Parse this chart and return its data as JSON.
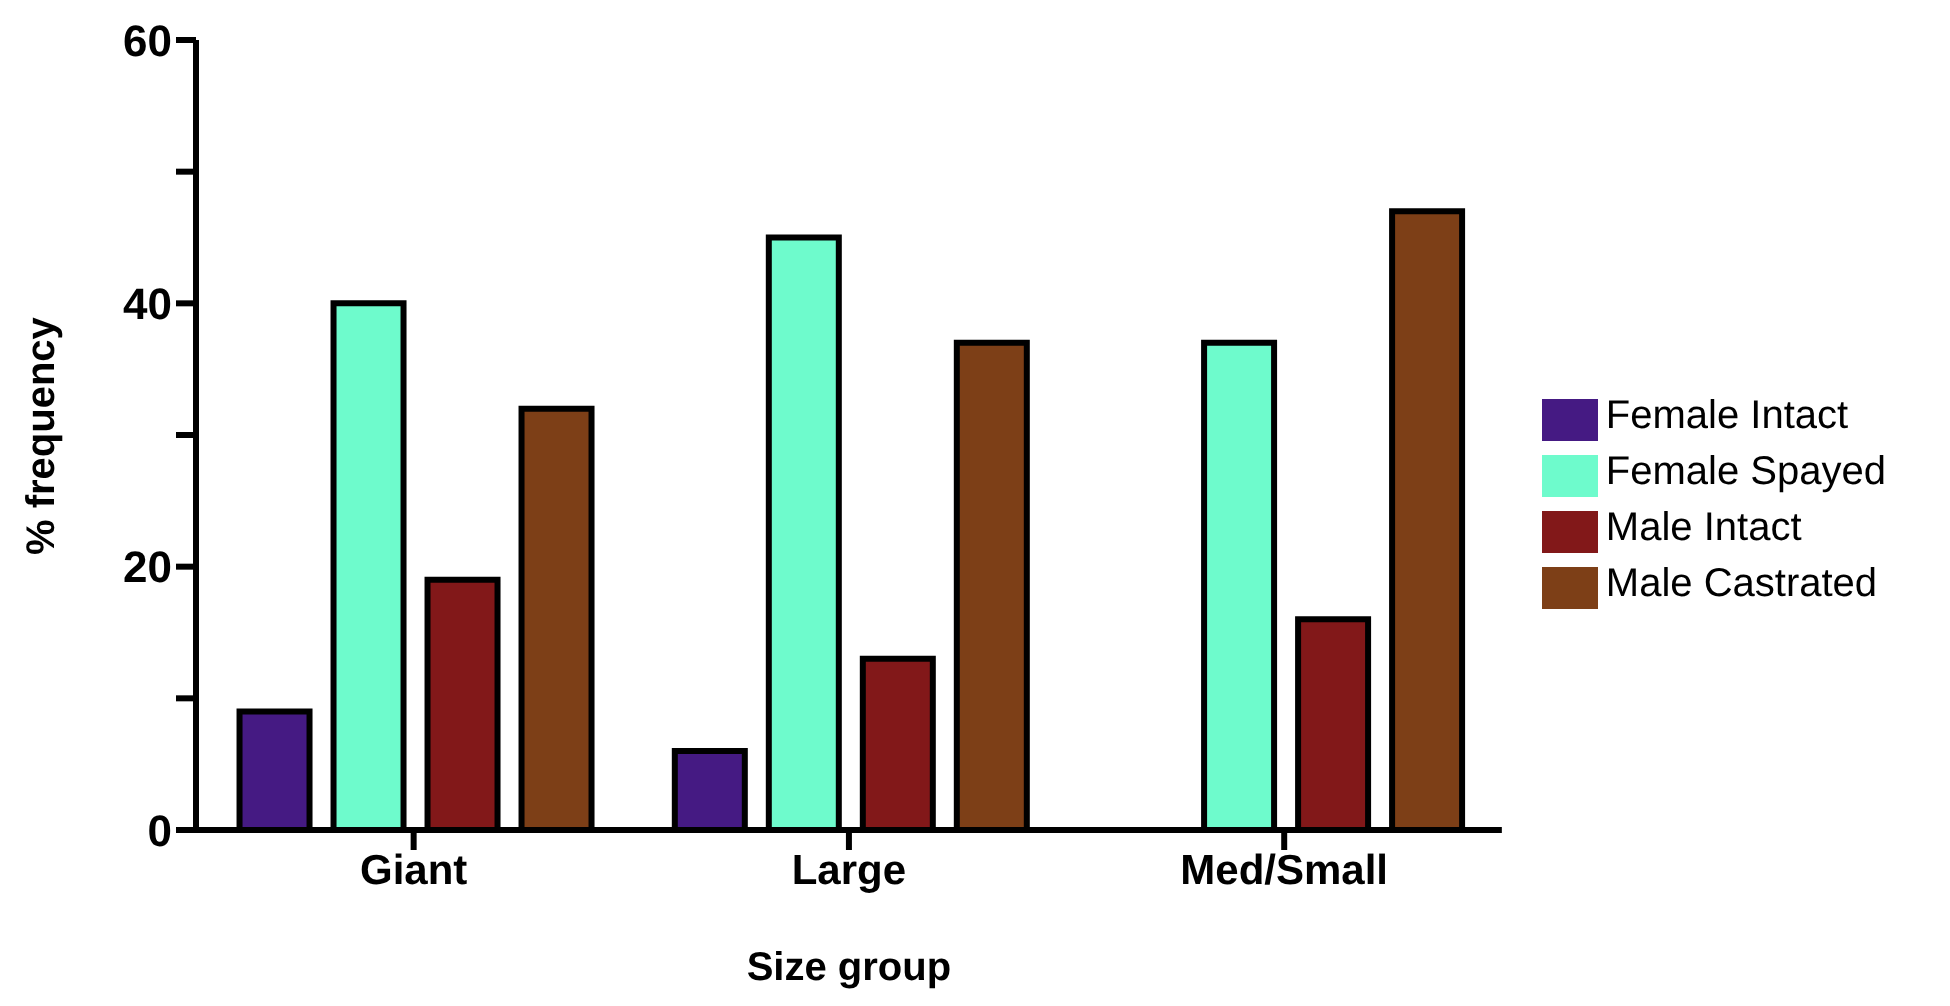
{
  "chart_data": {
    "type": "bar",
    "xlabel": "Size group",
    "ylabel": "% frequency",
    "categories": [
      "Giant",
      "Large",
      "Med/Small"
    ],
    "series": [
      {
        "name": "Female Intact",
        "color": "#451a83",
        "values": [
          9,
          6,
          0
        ]
      },
      {
        "name": "Female Spayed",
        "color": "#6efbcc",
        "values": [
          40,
          45,
          37
        ]
      },
      {
        "name": "Male Intact",
        "color": "#821819",
        "values": [
          19,
          13,
          16
        ]
      },
      {
        "name": "Male Castrated",
        "color": "#7d3f17",
        "values": [
          32,
          37,
          47
        ]
      }
    ],
    "ylim": [
      0,
      60
    ],
    "yticks": [
      0,
      {
        "value": 10,
        "label": null
      },
      20,
      {
        "value": 30,
        "label": null
      },
      40,
      {
        "value": 50,
        "label": null
      },
      60
    ],
    "grid": false,
    "legend": "right"
  }
}
